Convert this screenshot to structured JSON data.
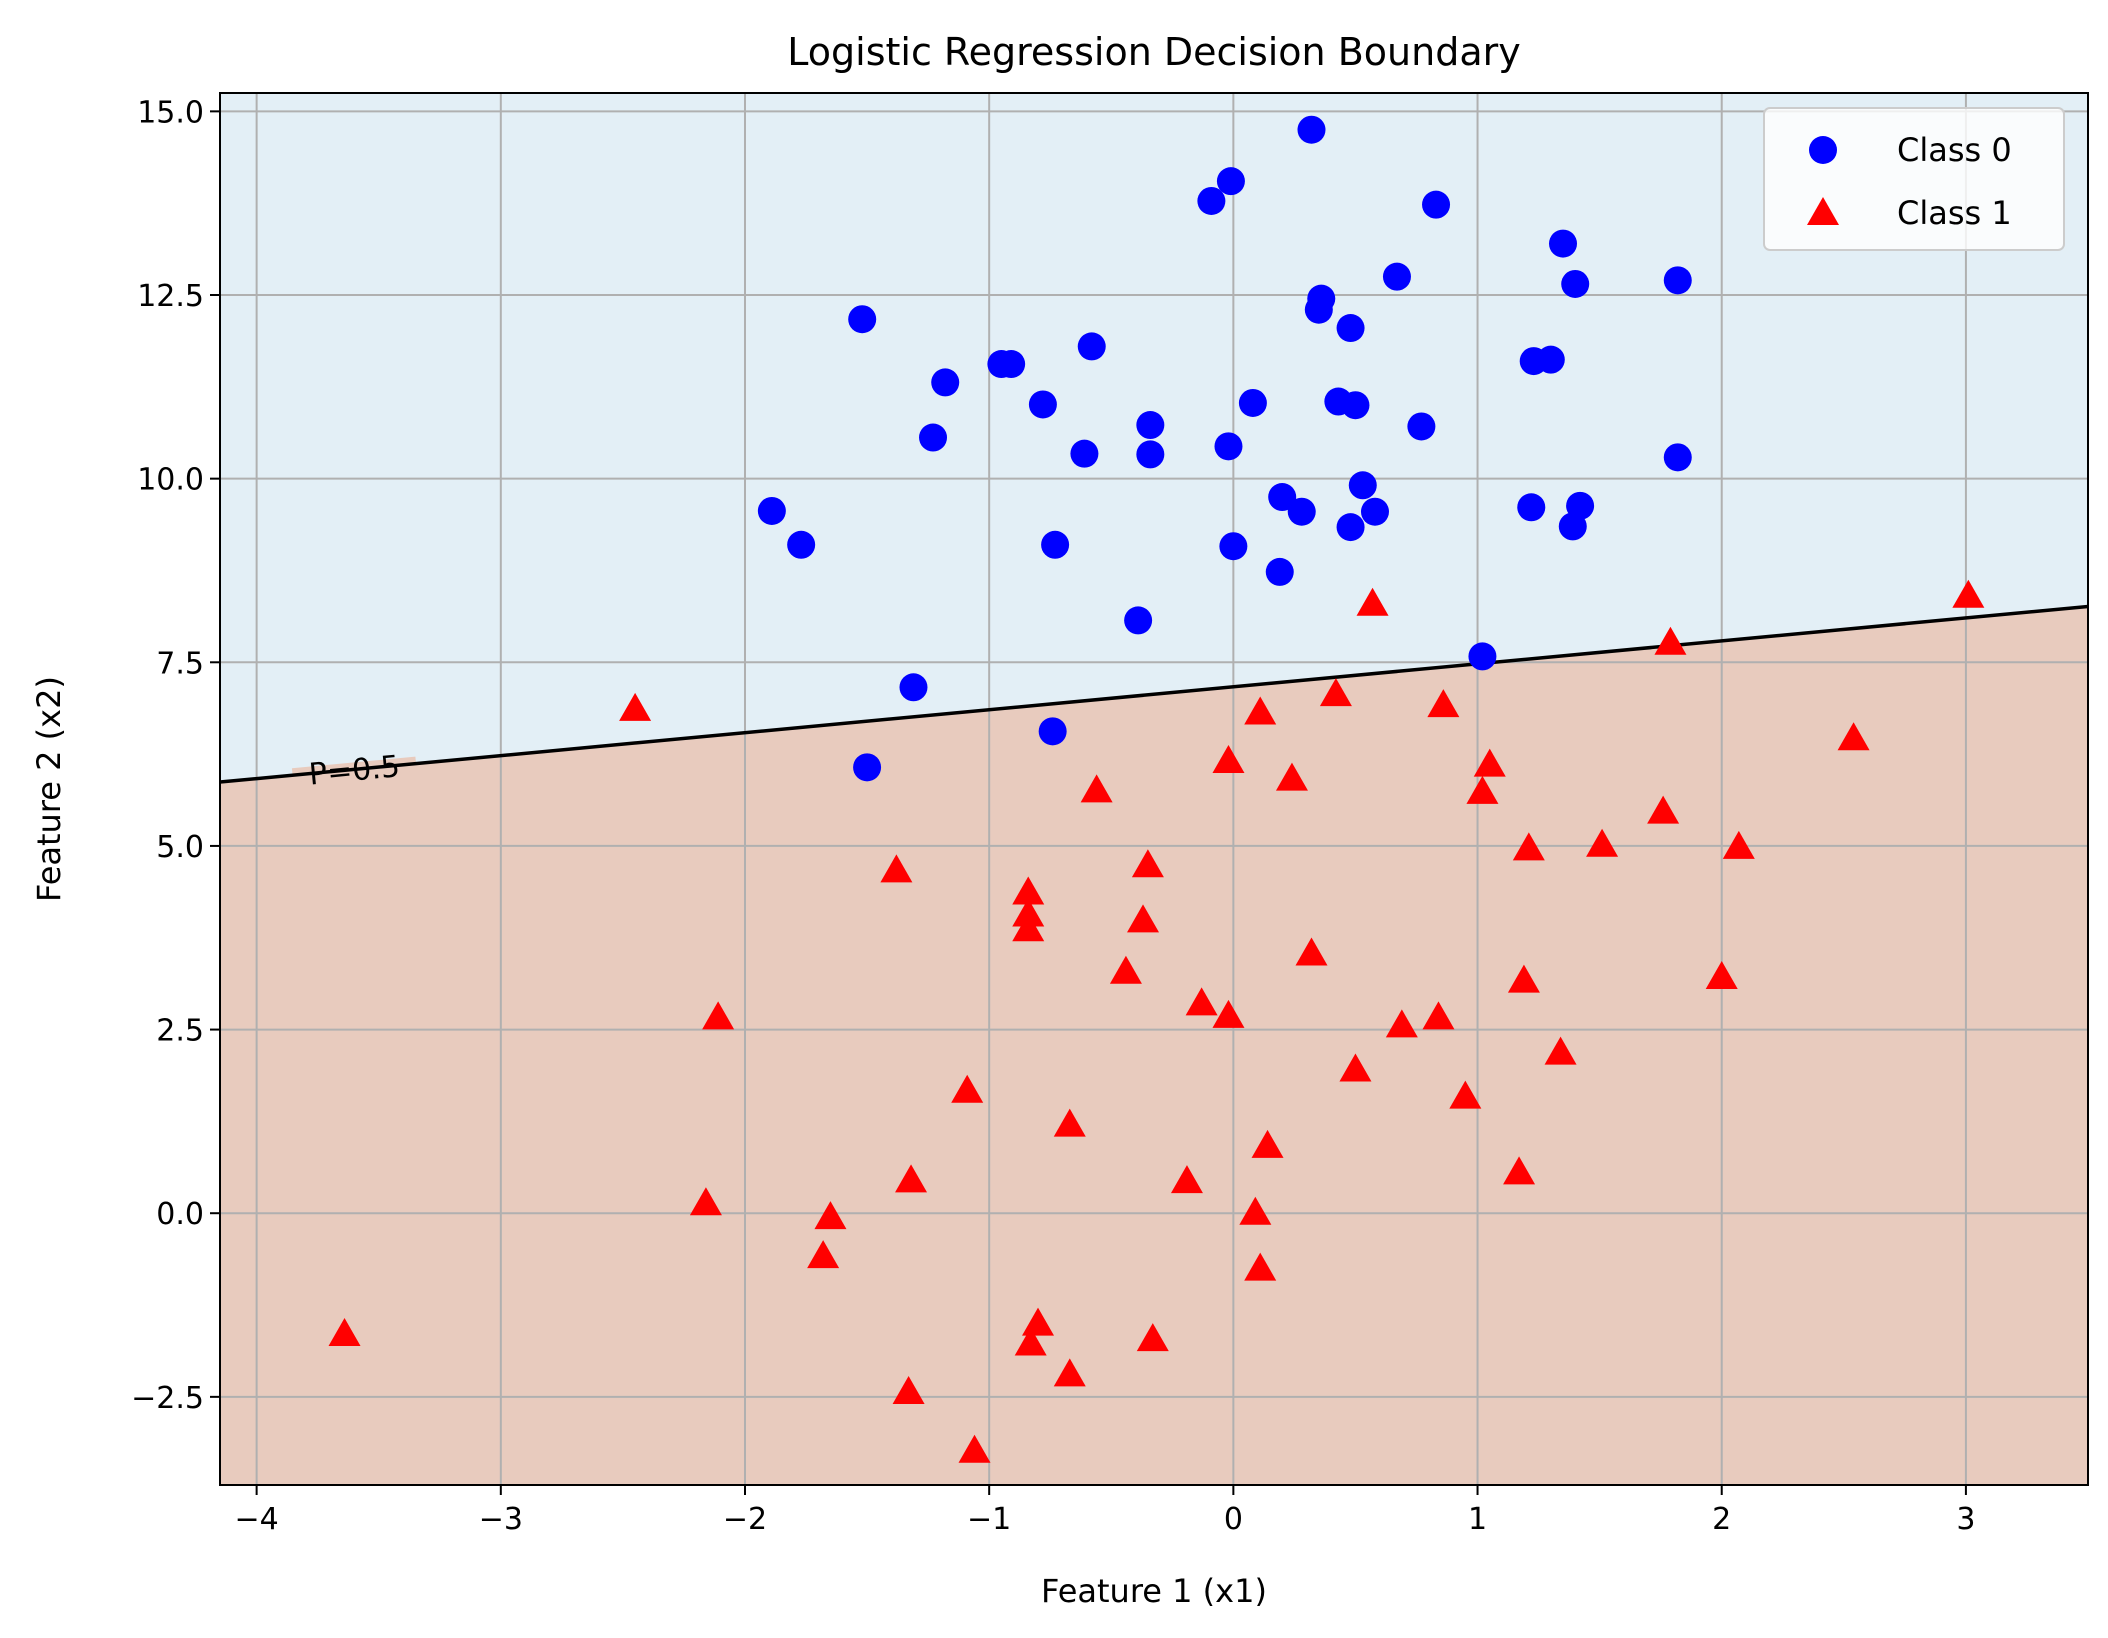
{
  "chart_data": {
    "type": "scatter",
    "title": "Logistic Regression Decision Boundary",
    "xlabel": "Feature 1 (x1)",
    "ylabel": "Feature 2 (x2)",
    "xlim": [
      -4.15,
      3.5
    ],
    "ylim": [
      -3.7,
      15.25
    ],
    "xticks": [
      -4,
      -3,
      -2,
      -1,
      0,
      1,
      2,
      3
    ],
    "xtick_labels": [
      "−4",
      "−3",
      "−2",
      "−1",
      "0",
      "1",
      "2",
      "3"
    ],
    "yticks": [
      -2.5,
      0.0,
      2.5,
      5.0,
      7.5,
      10.0,
      12.5,
      15.0
    ],
    "ytick_labels": [
      "−2.5",
      "0.0",
      "2.5",
      "5.0",
      "7.5",
      "10.0",
      "12.5",
      "15.0"
    ],
    "grid": true,
    "legend_position": "top-right",
    "region_colors": {
      "class0": "#e3eff6",
      "class1": "#e8cbbe"
    },
    "boundary": {
      "label": "P=0.5",
      "color": "#000000",
      "x": [
        -4.15,
        3.5
      ],
      "y": [
        5.87,
        8.26
      ],
      "label_at": [
        -3.6
      ]
    },
    "series": [
      {
        "name": "Class 0",
        "marker": "circle",
        "color": "#0000ff",
        "points": [
          [
            0.32,
            14.75
          ],
          [
            -0.01,
            14.05
          ],
          [
            -0.09,
            13.78
          ],
          [
            0.83,
            13.73
          ],
          [
            1.35,
            13.2
          ],
          [
            0.67,
            12.75
          ],
          [
            1.82,
            12.7
          ],
          [
            1.4,
            12.65
          ],
          [
            0.36,
            12.45
          ],
          [
            0.35,
            12.3
          ],
          [
            -1.52,
            12.17
          ],
          [
            0.48,
            12.05
          ],
          [
            -0.58,
            11.8
          ],
          [
            1.23,
            11.6
          ],
          [
            1.3,
            11.62
          ],
          [
            -0.95,
            11.56
          ],
          [
            -0.91,
            11.56
          ],
          [
            -1.18,
            11.31
          ],
          [
            0.08,
            11.03
          ],
          [
            -0.78,
            11.01
          ],
          [
            0.43,
            11.05
          ],
          [
            0.5,
            11.0
          ],
          [
            -0.34,
            10.73
          ],
          [
            0.77,
            10.71
          ],
          [
            -1.23,
            10.56
          ],
          [
            -0.02,
            10.44
          ],
          [
            -0.34,
            10.33
          ],
          [
            -0.61,
            10.34
          ],
          [
            1.82,
            10.29
          ],
          [
            0.53,
            9.91
          ],
          [
            0.2,
            9.75
          ],
          [
            1.22,
            9.61
          ],
          [
            1.42,
            9.63
          ],
          [
            -1.89,
            9.56
          ],
          [
            0.28,
            9.55
          ],
          [
            0.58,
            9.55
          ],
          [
            1.39,
            9.35
          ],
          [
            0.48,
            9.34
          ],
          [
            -1.77,
            9.1
          ],
          [
            -0.73,
            9.1
          ],
          [
            0.0,
            9.08
          ],
          [
            0.19,
            8.73
          ],
          [
            -0.39,
            8.07
          ],
          [
            1.02,
            7.58
          ],
          [
            -1.31,
            7.16
          ],
          [
            -0.74,
            6.56
          ],
          [
            -1.5,
            6.07
          ]
        ]
      },
      {
        "name": "Class 1",
        "marker": "triangle",
        "color": "#ff0000",
        "points": [
          [
            3.01,
            8.42
          ],
          [
            0.57,
            8.31
          ],
          [
            1.79,
            7.78
          ],
          [
            0.42,
            7.08
          ],
          [
            0.86,
            6.93
          ],
          [
            -2.45,
            6.88
          ],
          [
            0.11,
            6.83
          ],
          [
            2.54,
            6.48
          ],
          [
            -0.02,
            6.17
          ],
          [
            1.05,
            6.12
          ],
          [
            0.24,
            5.93
          ],
          [
            -0.56,
            5.77
          ],
          [
            1.02,
            5.75
          ],
          [
            1.76,
            5.48
          ],
          [
            1.51,
            5.03
          ],
          [
            1.21,
            4.98
          ],
          [
            2.07,
            5.0
          ],
          [
            -0.35,
            4.75
          ],
          [
            -1.38,
            4.68
          ],
          [
            -0.84,
            4.38
          ],
          [
            -0.84,
            4.08
          ],
          [
            -0.37,
            4.0
          ],
          [
            -0.84,
            3.88
          ],
          [
            0.32,
            3.55
          ],
          [
            -0.44,
            3.3
          ],
          [
            1.19,
            3.18
          ],
          [
            2.0,
            3.23
          ],
          [
            -0.13,
            2.87
          ],
          [
            -2.11,
            2.68
          ],
          [
            -0.02,
            2.7
          ],
          [
            0.84,
            2.68
          ],
          [
            0.69,
            2.57
          ],
          [
            1.34,
            2.2
          ],
          [
            0.5,
            1.97
          ],
          [
            -1.09,
            1.68
          ],
          [
            0.95,
            1.6
          ],
          [
            -0.67,
            1.22
          ],
          [
            0.14,
            0.93
          ],
          [
            1.17,
            0.57
          ],
          [
            -0.19,
            0.45
          ],
          [
            -1.32,
            0.46
          ],
          [
            -2.16,
            0.15
          ],
          [
            0.09,
            0.02
          ],
          [
            -1.65,
            -0.04
          ],
          [
            -1.68,
            -0.57
          ],
          [
            0.11,
            -0.74
          ],
          [
            -3.64,
            -1.63
          ],
          [
            -0.8,
            -1.49
          ],
          [
            -0.33,
            -1.7
          ],
          [
            -0.83,
            -1.76
          ],
          [
            -0.67,
            -2.18
          ],
          [
            -1.33,
            -2.42
          ],
          [
            -1.06,
            -3.22
          ]
        ]
      }
    ]
  }
}
